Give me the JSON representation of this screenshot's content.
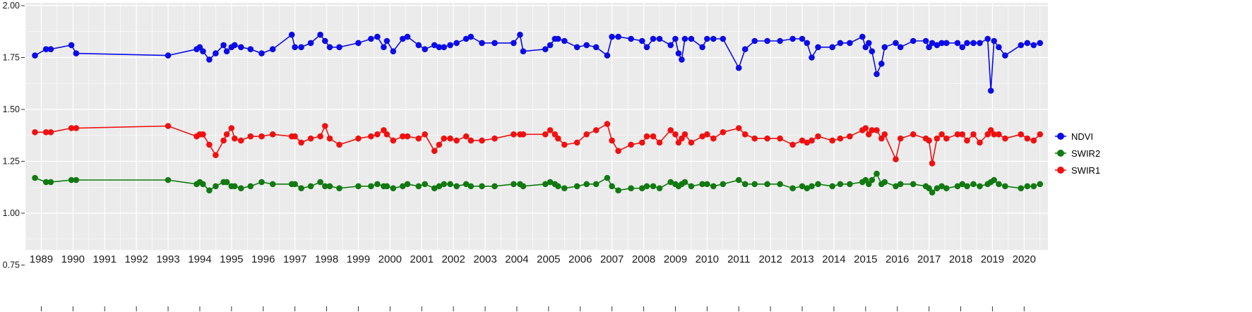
{
  "chart_data": {
    "type": "line",
    "title": "",
    "xlabel": "",
    "ylabel": "",
    "panel_bg": "#EBEBEB",
    "grid_color": "#FFFFFF",
    "tick_color": "#333333",
    "label_color": "#1a1a1a",
    "x_range": [
      1988.5,
      2020.75
    ],
    "y_range": [
      0.75,
      2.0
    ],
    "x_ticks": [
      "1989",
      "1990",
      "1991",
      "1992",
      "1993",
      "1994",
      "1995",
      "1996",
      "1997",
      "1998",
      "1999",
      "2000",
      "2001",
      "2002",
      "2003",
      "2004",
      "2005",
      "2006",
      "2007",
      "2008",
      "2009",
      "2010",
      "2011",
      "2012",
      "2013",
      "2014",
      "2015",
      "2016",
      "2017",
      "2018",
      "2019",
      "2020"
    ],
    "y_ticks": [
      "2.00",
      "1.75",
      "1.50",
      "1.25",
      "1.00",
      "0.75"
    ],
    "legend_position": "right",
    "x": [
      1988.8,
      1989.15,
      1989.3,
      1989.95,
      1990.1,
      1993.0,
      1993.9,
      1994.0,
      1994.1,
      1994.3,
      1994.5,
      1994.75,
      1994.85,
      1995.0,
      1995.1,
      1995.3,
      1995.6,
      1995.95,
      1996.3,
      1996.9,
      1997.0,
      1997.2,
      1997.5,
      1997.8,
      1997.95,
      1998.1,
      1998.4,
      1999.0,
      1999.4,
      1999.6,
      1999.8,
      1999.9,
      2000.1,
      2000.4,
      2000.55,
      2000.9,
      2001.1,
      2001.4,
      2001.55,
      2001.7,
      2001.9,
      2002.1,
      2002.4,
      2002.55,
      2002.9,
      2003.3,
      2003.9,
      2004.1,
      2004.2,
      2004.9,
      2005.05,
      2005.2,
      2005.3,
      2005.5,
      2005.9,
      2006.2,
      2006.5,
      2006.85,
      2007.0,
      2007.2,
      2007.6,
      2007.95,
      2008.1,
      2008.3,
      2008.5,
      2008.85,
      2009.0,
      2009.1,
      2009.2,
      2009.3,
      2009.5,
      2009.85,
      2010.0,
      2010.2,
      2010.5,
      2011.0,
      2011.2,
      2011.5,
      2011.9,
      2012.3,
      2012.7,
      2013.0,
      2013.15,
      2013.3,
      2013.5,
      2013.95,
      2014.2,
      2014.5,
      2014.9,
      2015.0,
      2015.1,
      2015.2,
      2015.35,
      2015.5,
      2015.6,
      2015.95,
      2016.1,
      2016.5,
      2016.9,
      2017.0,
      2017.1,
      2017.25,
      2017.4,
      2017.55,
      2017.9,
      2018.05,
      2018.2,
      2018.4,
      2018.6,
      2018.85,
      2018.95,
      2019.05,
      2019.2,
      2019.4,
      2019.9,
      2020.1,
      2020.3,
      2020.5
    ],
    "series": [
      {
        "name": "NDVI",
        "color": "#0B0BE8",
        "values": [
          1.76,
          1.79,
          1.79,
          1.81,
          1.77,
          1.76,
          1.79,
          1.8,
          1.78,
          1.74,
          1.77,
          1.81,
          1.78,
          1.8,
          1.81,
          1.8,
          1.79,
          1.77,
          1.79,
          1.86,
          1.8,
          1.8,
          1.82,
          1.86,
          1.83,
          1.8,
          1.8,
          1.82,
          1.84,
          1.85,
          1.8,
          1.83,
          1.78,
          1.84,
          1.85,
          1.81,
          1.79,
          1.81,
          1.8,
          1.8,
          1.81,
          1.82,
          1.84,
          1.85,
          1.82,
          1.82,
          1.82,
          1.86,
          1.78,
          1.79,
          1.81,
          1.84,
          1.84,
          1.83,
          1.8,
          1.81,
          1.8,
          1.76,
          1.85,
          1.85,
          1.84,
          1.83,
          1.8,
          1.84,
          1.84,
          1.81,
          1.84,
          1.77,
          1.74,
          1.84,
          1.84,
          1.8,
          1.84,
          1.84,
          1.84,
          1.7,
          1.79,
          1.83,
          1.83,
          1.83,
          1.84,
          1.84,
          1.82,
          1.75,
          1.8,
          1.8,
          1.82,
          1.82,
          1.85,
          1.8,
          1.82,
          1.78,
          1.67,
          1.72,
          1.8,
          1.82,
          1.8,
          1.83,
          1.83,
          1.8,
          1.82,
          1.81,
          1.82,
          1.82,
          1.82,
          1.8,
          1.82,
          1.82,
          1.82,
          1.84,
          1.59,
          1.83,
          1.8,
          1.76,
          1.81,
          1.82,
          1.81,
          1.82
        ]
      },
      {
        "name": "SWIR2",
        "color": "#117A11",
        "values": [
          1.17,
          1.15,
          1.15,
          1.16,
          1.16,
          1.16,
          1.14,
          1.15,
          1.14,
          1.11,
          1.13,
          1.15,
          1.15,
          1.13,
          1.13,
          1.12,
          1.13,
          1.15,
          1.14,
          1.14,
          1.14,
          1.12,
          1.13,
          1.15,
          1.13,
          1.13,
          1.12,
          1.13,
          1.13,
          1.14,
          1.13,
          1.13,
          1.12,
          1.13,
          1.14,
          1.13,
          1.14,
          1.12,
          1.13,
          1.14,
          1.14,
          1.13,
          1.14,
          1.13,
          1.13,
          1.13,
          1.14,
          1.14,
          1.13,
          1.14,
          1.15,
          1.14,
          1.13,
          1.12,
          1.13,
          1.14,
          1.14,
          1.17,
          1.13,
          1.11,
          1.12,
          1.12,
          1.13,
          1.13,
          1.12,
          1.15,
          1.14,
          1.13,
          1.14,
          1.15,
          1.13,
          1.14,
          1.14,
          1.13,
          1.14,
          1.16,
          1.14,
          1.14,
          1.14,
          1.14,
          1.12,
          1.13,
          1.12,
          1.13,
          1.14,
          1.13,
          1.14,
          1.14,
          1.15,
          1.16,
          1.14,
          1.16,
          1.19,
          1.14,
          1.15,
          1.13,
          1.14,
          1.14,
          1.13,
          1.12,
          1.1,
          1.12,
          1.13,
          1.12,
          1.13,
          1.14,
          1.13,
          1.14,
          1.13,
          1.14,
          1.15,
          1.16,
          1.14,
          1.13,
          1.12,
          1.13,
          1.13,
          1.14
        ]
      },
      {
        "name": "SWIR1",
        "color": "#F01010",
        "values": [
          1.39,
          1.39,
          1.39,
          1.41,
          1.41,
          1.42,
          1.37,
          1.38,
          1.38,
          1.33,
          1.28,
          1.35,
          1.38,
          1.41,
          1.36,
          1.35,
          1.37,
          1.37,
          1.38,
          1.37,
          1.37,
          1.34,
          1.36,
          1.37,
          1.42,
          1.36,
          1.33,
          1.36,
          1.37,
          1.38,
          1.4,
          1.38,
          1.35,
          1.37,
          1.37,
          1.36,
          1.38,
          1.3,
          1.33,
          1.36,
          1.36,
          1.35,
          1.37,
          1.35,
          1.35,
          1.36,
          1.38,
          1.38,
          1.38,
          1.38,
          1.4,
          1.38,
          1.36,
          1.33,
          1.34,
          1.38,
          1.4,
          1.43,
          1.35,
          1.3,
          1.33,
          1.34,
          1.37,
          1.37,
          1.34,
          1.4,
          1.38,
          1.34,
          1.36,
          1.38,
          1.34,
          1.37,
          1.38,
          1.36,
          1.39,
          1.41,
          1.38,
          1.36,
          1.36,
          1.36,
          1.33,
          1.35,
          1.34,
          1.35,
          1.37,
          1.35,
          1.36,
          1.37,
          1.4,
          1.41,
          1.38,
          1.4,
          1.4,
          1.36,
          1.38,
          1.26,
          1.36,
          1.38,
          1.36,
          1.35,
          1.24,
          1.36,
          1.38,
          1.36,
          1.38,
          1.38,
          1.35,
          1.38,
          1.34,
          1.38,
          1.4,
          1.38,
          1.38,
          1.36,
          1.38,
          1.36,
          1.35,
          1.38
        ]
      }
    ]
  }
}
